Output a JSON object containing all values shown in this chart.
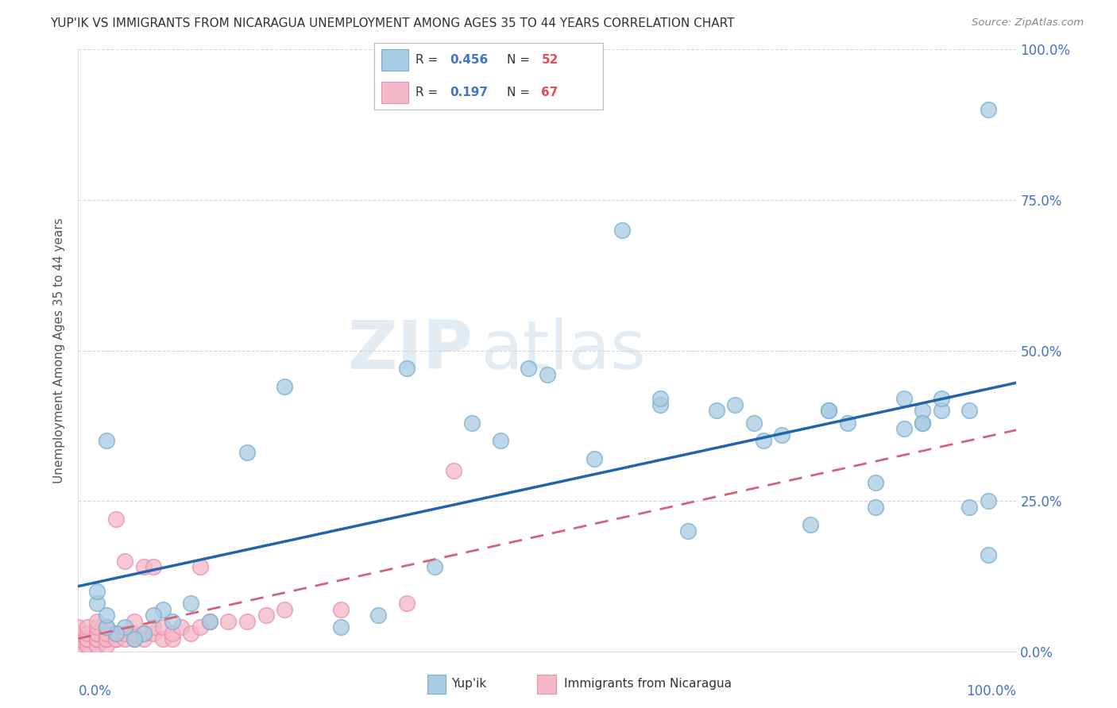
{
  "title": "YUP'IK VS IMMIGRANTS FROM NICARAGUA UNEMPLOYMENT AMONG AGES 35 TO 44 YEARS CORRELATION CHART",
  "source": "Source: ZipAtlas.com",
  "ylabel": "Unemployment Among Ages 35 to 44 years",
  "yup_r": "0.456",
  "yup_n": "52",
  "nic_r": "0.197",
  "nic_n": "67",
  "watermark_zip": "ZIP",
  "watermark_atlas": "atlas",
  "yup_color": "#a8cce4",
  "yup_edge_color": "#7aaecf",
  "nic_color": "#f4b8c8",
  "nic_edge_color": "#e891ab",
  "yup_line_color": "#2166ac",
  "nic_line_color": "#d4637a",
  "tick_color": "#4472c4",
  "background_color": "#ffffff",
  "grid_color": "#cccccc",
  "yup_scatter_x": [
    0.97,
    0.92,
    0.9,
    0.92,
    0.95,
    0.97,
    0.88,
    0.9,
    0.88,
    0.85,
    0.82,
    0.8,
    0.78,
    0.75,
    0.72,
    0.7,
    0.65,
    0.62,
    0.58,
    0.55,
    0.5,
    0.48,
    0.45,
    0.42,
    0.38,
    0.35,
    0.32,
    0.28,
    0.22,
    0.18,
    0.14,
    0.12,
    0.1,
    0.09,
    0.08,
    0.07,
    0.06,
    0.05,
    0.04,
    0.03,
    0.03,
    0.02,
    0.02,
    0.03,
    0.62,
    0.68,
    0.73,
    0.8,
    0.85,
    0.9,
    0.95,
    0.97
  ],
  "yup_scatter_y": [
    0.9,
    0.4,
    0.38,
    0.42,
    0.4,
    0.25,
    0.42,
    0.4,
    0.37,
    0.28,
    0.38,
    0.4,
    0.21,
    0.36,
    0.38,
    0.41,
    0.2,
    0.41,
    0.7,
    0.32,
    0.46,
    0.47,
    0.35,
    0.38,
    0.14,
    0.47,
    0.06,
    0.04,
    0.44,
    0.33,
    0.05,
    0.08,
    0.05,
    0.07,
    0.06,
    0.03,
    0.02,
    0.04,
    0.03,
    0.04,
    0.06,
    0.08,
    0.1,
    0.35,
    0.42,
    0.4,
    0.35,
    0.4,
    0.24,
    0.38,
    0.24,
    0.16
  ],
  "nic_scatter_x": [
    0.0,
    0.0,
    0.0,
    0.0,
    0.0,
    0.0,
    0.0,
    0.0,
    0.0,
    0.0,
    0.01,
    0.01,
    0.01,
    0.01,
    0.01,
    0.01,
    0.01,
    0.01,
    0.02,
    0.02,
    0.02,
    0.02,
    0.02,
    0.02,
    0.02,
    0.02,
    0.02,
    0.02,
    0.02,
    0.03,
    0.03,
    0.03,
    0.03,
    0.03,
    0.04,
    0.04,
    0.04,
    0.04,
    0.04,
    0.05,
    0.05,
    0.05,
    0.06,
    0.06,
    0.06,
    0.07,
    0.07,
    0.07,
    0.08,
    0.08,
    0.08,
    0.09,
    0.09,
    0.1,
    0.1,
    0.11,
    0.12,
    0.13,
    0.13,
    0.14,
    0.16,
    0.18,
    0.2,
    0.22,
    0.28,
    0.35,
    0.4
  ],
  "nic_scatter_y": [
    0.01,
    0.01,
    0.02,
    0.02,
    0.02,
    0.02,
    0.02,
    0.03,
    0.03,
    0.04,
    0.01,
    0.01,
    0.02,
    0.02,
    0.02,
    0.02,
    0.03,
    0.04,
    0.01,
    0.01,
    0.02,
    0.02,
    0.02,
    0.02,
    0.03,
    0.03,
    0.03,
    0.04,
    0.05,
    0.01,
    0.02,
    0.02,
    0.03,
    0.04,
    0.02,
    0.02,
    0.02,
    0.03,
    0.22,
    0.02,
    0.03,
    0.15,
    0.02,
    0.03,
    0.05,
    0.02,
    0.03,
    0.14,
    0.03,
    0.04,
    0.14,
    0.02,
    0.04,
    0.02,
    0.03,
    0.04,
    0.03,
    0.04,
    0.14,
    0.05,
    0.05,
    0.05,
    0.06,
    0.07,
    0.07,
    0.08,
    0.3
  ]
}
